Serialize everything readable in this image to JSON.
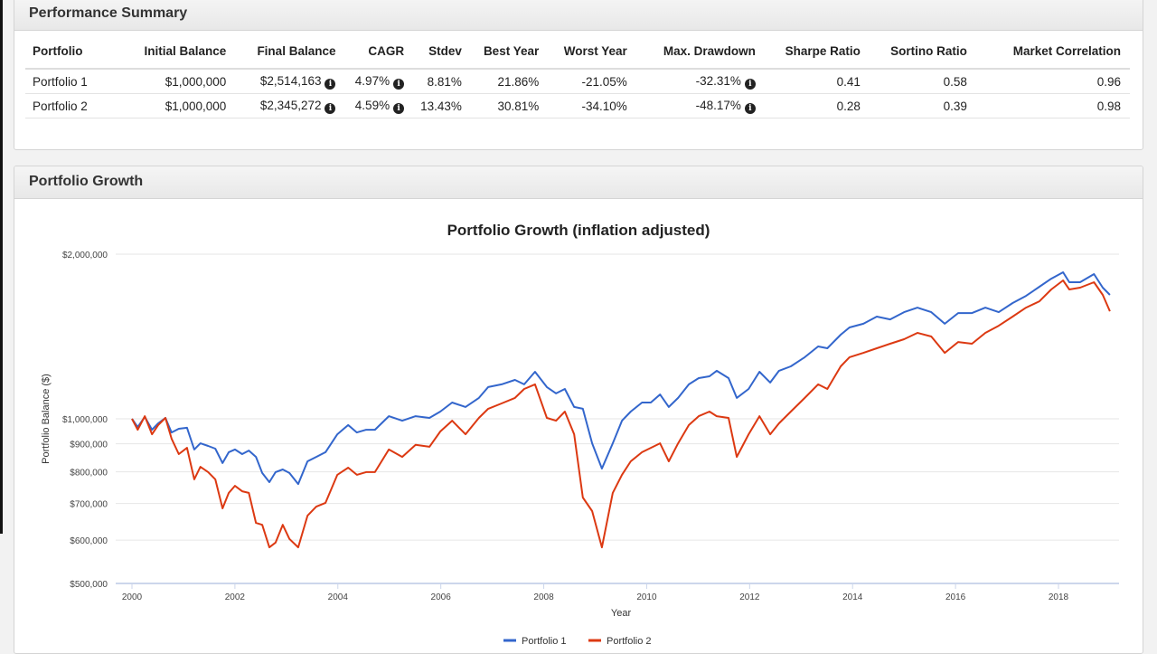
{
  "summary": {
    "title": "Performance Summary",
    "columns": [
      "Portfolio",
      "Initial Balance",
      "Final Balance",
      "CAGR",
      "Stdev",
      "Best Year",
      "Worst Year",
      "Max. Drawdown",
      "Sharpe Ratio",
      "Sortino Ratio",
      "Market Correlation"
    ],
    "info_columns": [
      2,
      3,
      7
    ],
    "rows": [
      [
        "Portfolio 1",
        "$1,000,000",
        "$2,514,163",
        "4.97%",
        "8.81%",
        "21.86%",
        "-21.05%",
        "-32.31%",
        "0.41",
        "0.58",
        "0.96"
      ],
      [
        "Portfolio 2",
        "$1,000,000",
        "$2,345,272",
        "4.59%",
        "13.43%",
        "30.81%",
        "-34.10%",
        "-48.17%",
        "0.28",
        "0.39",
        "0.98"
      ]
    ],
    "info_icon": "info-circle-icon"
  },
  "growth": {
    "title": "Portfolio Growth"
  },
  "chart_data": {
    "type": "line",
    "title": "Portfolio Growth (inflation adjusted)",
    "xlabel": "Year",
    "ylabel": "Portfolio Balance ($)",
    "yscale": "log",
    "ylim": [
      500000,
      2000000
    ],
    "xlim": [
      2000,
      2019.2
    ],
    "yticks": [
      500000,
      600000,
      700000,
      800000,
      900000,
      1000000,
      2000000
    ],
    "ytick_labels": [
      "$500,000",
      "$600,000",
      "$700,000",
      "$800,000",
      "$900,000",
      "$1,000,000",
      "$2,000,000"
    ],
    "xticks": [
      "2000",
      "2002",
      "2004",
      "2006",
      "2008",
      "2010",
      "2012",
      "2014",
      "2016",
      "2018"
    ],
    "grid": true,
    "legend": "bottom",
    "x": [
      2000.0,
      2000.11,
      2000.25,
      2000.39,
      2000.51,
      2000.65,
      2000.77,
      2000.91,
      2001.07,
      2001.21,
      2001.33,
      2001.48,
      2001.62,
      2001.76,
      2001.88,
      2002.0,
      2002.14,
      2002.27,
      2002.41,
      2002.53,
      2002.67,
      2002.79,
      2002.93,
      2003.06,
      2003.23,
      2003.41,
      2003.58,
      2003.76,
      2003.99,
      2004.2,
      2004.37,
      2004.55,
      2004.72,
      2004.99,
      2005.25,
      2005.51,
      2005.78,
      2005.99,
      2006.22,
      2006.48,
      2006.74,
      2006.92,
      2007.18,
      2007.44,
      2007.62,
      2007.83,
      2008.06,
      2008.24,
      2008.41,
      2008.59,
      2008.76,
      2008.94,
      2009.13,
      2009.34,
      2009.52,
      2009.69,
      2009.91,
      2010.08,
      2010.26,
      2010.43,
      2010.61,
      2010.82,
      2011.01,
      2011.22,
      2011.36,
      2011.59,
      2011.75,
      2011.98,
      2012.19,
      2012.4,
      2012.57,
      2012.8,
      2013.07,
      2013.33,
      2013.51,
      2013.77,
      2013.94,
      2014.21,
      2014.47,
      2014.73,
      2015.0,
      2015.26,
      2015.53,
      2015.79,
      2016.05,
      2016.32,
      2016.58,
      2016.84,
      2017.11,
      2017.37,
      2017.63,
      2017.86,
      2018.09,
      2018.21,
      2018.42,
      2018.69,
      2018.86,
      2019.0
    ],
    "series": [
      {
        "name": "Portfolio 1",
        "color": "#3366cc",
        "values": [
          1000000,
          966000,
          1008000,
          955000,
          981000,
          1004000,
          944000,
          959000,
          963000,
          879000,
          902000,
          892000,
          882000,
          830000,
          869000,
          879000,
          862000,
          875000,
          852000,
          796000,
          766000,
          799000,
          808000,
          796000,
          760000,
          836000,
          852000,
          869000,
          937000,
          974000,
          944000,
          955000,
          955000,
          1011000,
          992000,
          1011000,
          1004000,
          1031000,
          1071000,
          1051000,
          1092000,
          1143000,
          1156000,
          1178000,
          1156000,
          1219000,
          1143000,
          1113000,
          1134000,
          1051000,
          1043000,
          902000,
          811000,
          902000,
          992000,
          1031000,
          1071000,
          1071000,
          1108000,
          1051000,
          1092000,
          1156000,
          1187000,
          1196000,
          1224000,
          1187000,
          1092000,
          1134000,
          1219000,
          1165000,
          1224000,
          1247000,
          1296000,
          1356000,
          1346000,
          1425000,
          1469000,
          1492000,
          1538000,
          1520000,
          1567000,
          1597000,
          1567000,
          1492000,
          1561000,
          1561000,
          1597000,
          1567000,
          1628000,
          1678000,
          1744000,
          1804000,
          1853000,
          1777000,
          1777000,
          1839000,
          1737000,
          1685000
        ]
      },
      {
        "name": "Portfolio 2",
        "color": "#dc3912",
        "values": [
          1000000,
          955000,
          1011000,
          937000,
          974000,
          1004000,
          920000,
          862000,
          885000,
          775000,
          817000,
          799000,
          775000,
          686000,
          732000,
          754000,
          737000,
          732000,
          645000,
          640000,
          582000,
          594000,
          640000,
          603000,
          582000,
          665000,
          691000,
          702000,
          790000,
          814000,
          790000,
          799000,
          799000,
          879000,
          852000,
          896000,
          889000,
          948000,
          992000,
          937000,
          1004000,
          1043000,
          1067000,
          1092000,
          1134000,
          1156000,
          1004000,
          992000,
          1031000,
          937000,
          718000,
          678000,
          582000,
          732000,
          790000,
          836000,
          869000,
          885000,
          902000,
          836000,
          902000,
          974000,
          1011000,
          1031000,
          1011000,
          1004000,
          852000,
          937000,
          1011000,
          937000,
          981000,
          1031000,
          1092000,
          1156000,
          1134000,
          1247000,
          1296000,
          1320000,
          1346000,
          1372000,
          1398000,
          1436000,
          1414000,
          1320000,
          1382000,
          1372000,
          1436000,
          1480000,
          1538000,
          1597000,
          1640000,
          1724000,
          1791000,
          1724000,
          1737000,
          1777000,
          1685000,
          1573000
        ]
      }
    ]
  }
}
